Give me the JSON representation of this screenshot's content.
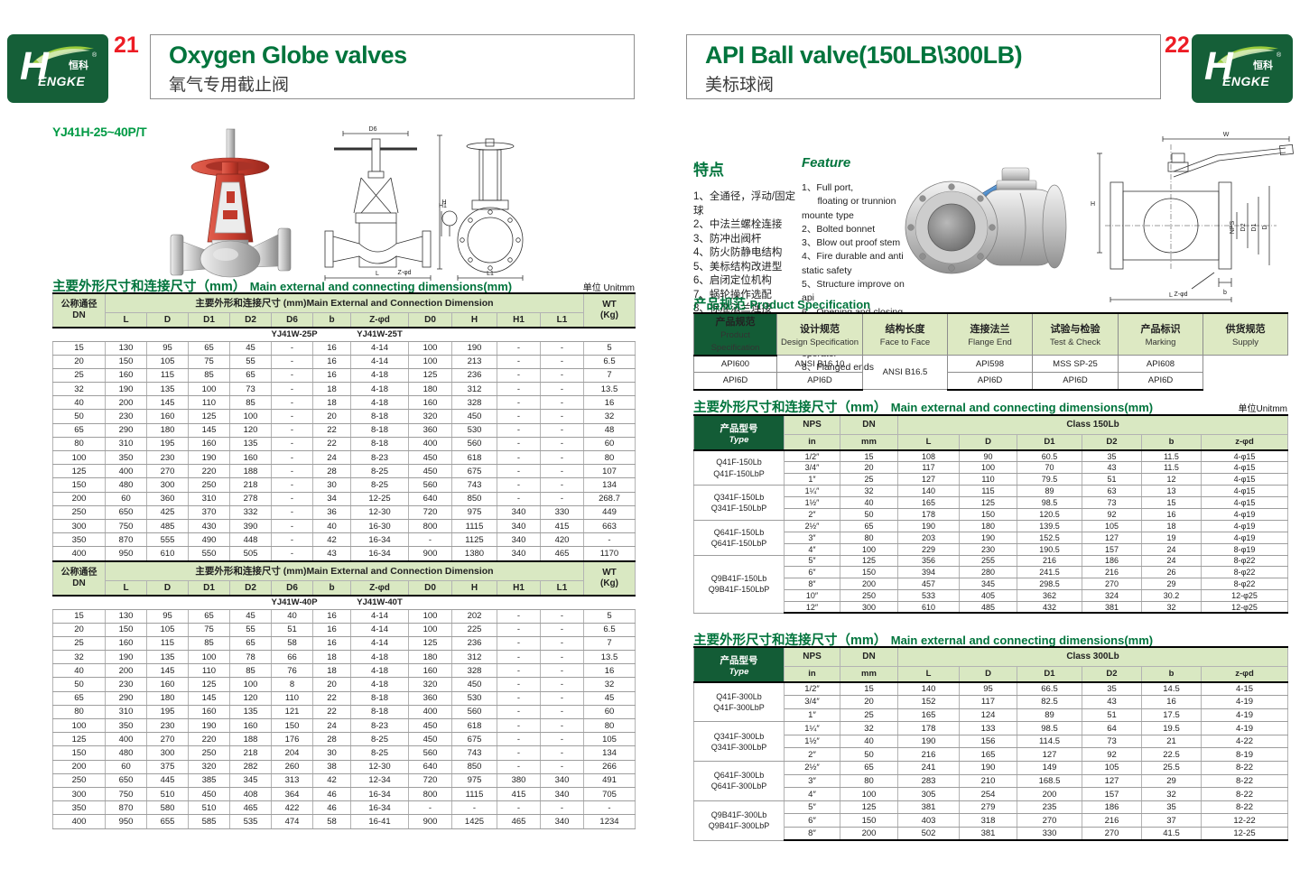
{
  "logo": {
    "h": "H",
    "engke": "ENGKE",
    "zh": "恒科",
    "reg": "®"
  },
  "left": {
    "page_number": "21",
    "title": "Oxygen Globe valves",
    "subtitle": "氧气专用截止阀",
    "model": "YJ41H-25~40P/T",
    "section_title_zh": "主要外形尺寸和连接尺寸（mm）",
    "section_title_en": "Main external and connecting dimensions(mm)",
    "unit": "单位 Unitmm",
    "table": {
      "dn_zh": "公称通径",
      "dn_en": "DN",
      "span_header": "主要外形和连接尺寸 (mm)Main External and Connection Dimension",
      "wt_zh": "WT",
      "wt_en": "(Kg)",
      "columns": [
        "L",
        "D",
        "D1",
        "D2",
        "D6",
        "b",
        "Z-φd",
        "D0",
        "H",
        "H1",
        "L1"
      ],
      "s1_model_p": "YJ41W-25P",
      "s1_model_t": "YJ41W-25T",
      "s2_model_p": "YJ41W-40P",
      "s2_model_t": "YJ41W-40T",
      "rows1": [
        [
          "15",
          "130",
          "95",
          "65",
          "45",
          "-",
          "16",
          "4-14",
          "100",
          "190",
          "-",
          "-",
          "5"
        ],
        [
          "20",
          "150",
          "105",
          "75",
          "55",
          "-",
          "16",
          "4-14",
          "100",
          "213",
          "-",
          "-",
          "6.5"
        ],
        [
          "25",
          "160",
          "115",
          "85",
          "65",
          "-",
          "16",
          "4-18",
          "125",
          "236",
          "-",
          "-",
          "7"
        ],
        [
          "32",
          "190",
          "135",
          "100",
          "73",
          "-",
          "18",
          "4-18",
          "180",
          "312",
          "-",
          "-",
          "13.5"
        ],
        [
          "40",
          "200",
          "145",
          "110",
          "85",
          "-",
          "18",
          "4-18",
          "160",
          "328",
          "-",
          "-",
          "16"
        ],
        [
          "50",
          "230",
          "160",
          "125",
          "100",
          "-",
          "20",
          "8-18",
          "320",
          "450",
          "-",
          "-",
          "32"
        ],
        [
          "65",
          "290",
          "180",
          "145",
          "120",
          "-",
          "22",
          "8-18",
          "360",
          "530",
          "-",
          "-",
          "48"
        ],
        [
          "80",
          "310",
          "195",
          "160",
          "135",
          "-",
          "22",
          "8-18",
          "400",
          "560",
          "-",
          "-",
          "60"
        ],
        [
          "100",
          "350",
          "230",
          "190",
          "160",
          "-",
          "24",
          "8-23",
          "450",
          "618",
          "-",
          "-",
          "80"
        ],
        [
          "125",
          "400",
          "270",
          "220",
          "188",
          "-",
          "28",
          "8-25",
          "450",
          "675",
          "-",
          "-",
          "107"
        ],
        [
          "150",
          "480",
          "300",
          "250",
          "218",
          "-",
          "30",
          "8-25",
          "560",
          "743",
          "-",
          "-",
          "134"
        ],
        [
          "200",
          "60",
          "360",
          "310",
          "278",
          "-",
          "34",
          "12-25",
          "640",
          "850",
          "-",
          "-",
          "268.7"
        ],
        [
          "250",
          "650",
          "425",
          "370",
          "332",
          "-",
          "36",
          "12-30",
          "720",
          "975",
          "340",
          "330",
          "449"
        ],
        [
          "300",
          "750",
          "485",
          "430",
          "390",
          "-",
          "40",
          "16-30",
          "800",
          "1115",
          "340",
          "415",
          "663"
        ],
        [
          "350",
          "870",
          "555",
          "490",
          "448",
          "-",
          "42",
          "16-34",
          "-",
          "1125",
          "340",
          "420",
          "-"
        ],
        [
          "400",
          "950",
          "610",
          "550",
          "505",
          "-",
          "43",
          "16-34",
          "900",
          "1380",
          "340",
          "465",
          "1170"
        ]
      ],
      "rows2": [
        [
          "15",
          "130",
          "95",
          "65",
          "45",
          "40",
          "16",
          "4-14",
          "100",
          "202",
          "-",
          "-",
          "5"
        ],
        [
          "20",
          "150",
          "105",
          "75",
          "55",
          "51",
          "16",
          "4-14",
          "100",
          "225",
          "-",
          "-",
          "6.5"
        ],
        [
          "25",
          "160",
          "115",
          "85",
          "65",
          "58",
          "16",
          "4-14",
          "125",
          "236",
          "-",
          "-",
          "7"
        ],
        [
          "32",
          "190",
          "135",
          "100",
          "78",
          "66",
          "18",
          "4-18",
          "180",
          "312",
          "-",
          "-",
          "13.5"
        ],
        [
          "40",
          "200",
          "145",
          "110",
          "85",
          "76",
          "18",
          "4-18",
          "160",
          "328",
          "-",
          "-",
          "16"
        ],
        [
          "50",
          "230",
          "160",
          "125",
          "100",
          "8",
          "20",
          "4-18",
          "320",
          "450",
          "-",
          "-",
          "32"
        ],
        [
          "65",
          "290",
          "180",
          "145",
          "120",
          "110",
          "22",
          "8-18",
          "360",
          "530",
          "-",
          "-",
          "45"
        ],
        [
          "80",
          "310",
          "195",
          "160",
          "135",
          "121",
          "22",
          "8-18",
          "400",
          "560",
          "-",
          "-",
          "60"
        ],
        [
          "100",
          "350",
          "230",
          "190",
          "160",
          "150",
          "24",
          "8-23",
          "450",
          "618",
          "-",
          "-",
          "80"
        ],
        [
          "125",
          "400",
          "270",
          "220",
          "188",
          "176",
          "28",
          "8-25",
          "450",
          "675",
          "-",
          "-",
          "105"
        ],
        [
          "150",
          "480",
          "300",
          "250",
          "218",
          "204",
          "30",
          "8-25",
          "560",
          "743",
          "-",
          "-",
          "134"
        ],
        [
          "200",
          "60",
          "375",
          "320",
          "282",
          "260",
          "38",
          "12-30",
          "640",
          "850",
          "-",
          "-",
          "266"
        ],
        [
          "250",
          "650",
          "445",
          "385",
          "345",
          "313",
          "42",
          "12-34",
          "720",
          "975",
          "380",
          "340",
          "491"
        ],
        [
          "300",
          "750",
          "510",
          "450",
          "408",
          "364",
          "46",
          "16-34",
          "800",
          "1115",
          "415",
          "340",
          "705"
        ],
        [
          "350",
          "870",
          "580",
          "510",
          "465",
          "422",
          "46",
          "16-34",
          "-",
          "-",
          "-",
          "-",
          "-"
        ],
        [
          "400",
          "950",
          "655",
          "585",
          "535",
          "474",
          "58",
          "16-41",
          "900",
          "1425",
          "465",
          "340",
          "1234"
        ]
      ]
    },
    "drawing_front": {
      "top": "D6",
      "right": "H",
      "flange": "Z-φd",
      "bottom": "L"
    },
    "drawing_side": {
      "left": "H1",
      "bottom": "L1"
    }
  },
  "right": {
    "page_number": "22",
    "title": "API Ball valve(150LB\\300LB)",
    "subtitle": "美标球阀",
    "features_zh": {
      "title": "特点",
      "items": [
        "1、全通径，浮动/固定球",
        "2、中法兰螺栓连接",
        "3、防冲出阀杆",
        "4、防火防静电结构",
        "5、美标结构改进型",
        "6、启闭定位机构",
        "7、蜗轮操作选配",
        "8、标准法兰连接"
      ]
    },
    "features_en": {
      "title": "Feature",
      "items": [
        "1、Full port,",
        "      floating or trunnion mounte type",
        "2、Bolted bonnet",
        "3、Blow out proof stem",
        "4、Fire durable and anti static safety",
        "5、Structure improve on api",
        "6、Opening and closing position",
        "7、Available with wormgear operator",
        "8、Flanged ends"
      ]
    },
    "spec": {
      "title_zh": "产品规范",
      "title_en": "Product Specification",
      "head_zh": "产品规范",
      "head_en1": "Product",
      "head_en2": "Specification",
      "columns": [
        {
          "zh": "设计规范",
          "en": "Design Specification"
        },
        {
          "zh": "结构长度",
          "en": "Face to Face"
        },
        {
          "zh": "连接法兰",
          "en": "Flange End"
        },
        {
          "zh": "试验与检验",
          "en": "Test & Check"
        },
        {
          "zh": "产品标识",
          "en": "Marking"
        },
        {
          "zh": "供货规范",
          "en": "Supply"
        }
      ],
      "row1": [
        "API600",
        "ANSI B16.10",
        "ANSI B16.5",
        "API598",
        "MSS SP-25",
        "API608"
      ],
      "row2": [
        "API6D",
        "API6D",
        "API6D",
        "API6D",
        "API6D"
      ]
    },
    "t150": {
      "title_zh": "主要外形尺寸和连接尺寸（mm）",
      "title_en": "Main external and connecting dimensions(mm)",
      "unit": "单位Unitmm",
      "type_zh": "产品型号",
      "type_en": "Type",
      "nps": "NPS",
      "dn": "DN",
      "in_label": "in",
      "mm_label": "mm",
      "class_label": "Class 150Lb",
      "columns": [
        "L",
        "D",
        "D1",
        "D2",
        "b",
        "z-φd"
      ],
      "groups": [
        {
          "type": [
            "Q41F-150Lb",
            "Q41F-150LbP"
          ],
          "rows": [
            [
              "1/2″",
              "15",
              "108",
              "90",
              "60.5",
              "35",
              "11.5",
              "4-φ15"
            ],
            [
              "3/4″",
              "20",
              "117",
              "100",
              "70",
              "43",
              "11.5",
              "4-φ15"
            ],
            [
              "1″",
              "25",
              "127",
              "110",
              "79.5",
              "51",
              "12",
              "4-φ15"
            ]
          ]
        },
        {
          "type": [
            "Q341F-150Lb",
            "Q341F-150LbP"
          ],
          "rows": [
            [
              "1¼″",
              "32",
              "140",
              "115",
              "89",
              "63",
              "13",
              "4-φ15"
            ],
            [
              "1½″",
              "40",
              "165",
              "125",
              "98.5",
              "73",
              "15",
              "4-φ15"
            ],
            [
              "2″",
              "50",
              "178",
              "150",
              "120.5",
              "92",
              "16",
              "4-φ19"
            ]
          ]
        },
        {
          "type": [
            "Q641F-150Lb",
            "Q641F-150LbP"
          ],
          "rows": [
            [
              "2½″",
              "65",
              "190",
              "180",
              "139.5",
              "105",
              "18",
              "4-φ19"
            ],
            [
              "3″",
              "80",
              "203",
              "190",
              "152.5",
              "127",
              "19",
              "4-φ19"
            ],
            [
              "4″",
              "100",
              "229",
              "230",
              "190.5",
              "157",
              "24",
              "8-φ19"
            ]
          ]
        },
        {
          "type": [
            "Q9B41F-150Lb",
            "Q9B41F-150LbP"
          ],
          "rows": [
            [
              "5″",
              "125",
              "356",
              "255",
              "216",
              "186",
              "24",
              "8-φ22"
            ],
            [
              "6″",
              "150",
              "394",
              "280",
              "241.5",
              "216",
              "26",
              "8-φ22"
            ],
            [
              "8″",
              "200",
              "457",
              "345",
              "298.5",
              "270",
              "29",
              "8-φ22"
            ],
            [
              "10″",
              "250",
              "533",
              "405",
              "362",
              "324",
              "30.2",
              "12-φ25"
            ],
            [
              "12″",
              "300",
              "610",
              "485",
              "432",
              "381",
              "32",
              "12-φ25"
            ]
          ]
        }
      ]
    },
    "t300": {
      "title_zh": "主要外形尺寸和连接尺寸（mm）",
      "title_en": "Main external and connecting dimensions(mm)",
      "type_zh": "产品型号",
      "type_en": "Type",
      "nps": "NPS",
      "dn": "DN",
      "in_label": "in",
      "mm_label": "mm",
      "class_label": "Class 300Lb",
      "columns": [
        "L",
        "D",
        "D1",
        "D2",
        "b",
        "z-φd"
      ],
      "groups": [
        {
          "type": [
            "Q41F-300Lb",
            "Q41F-300LbP"
          ],
          "rows": [
            [
              "1/2″",
              "15",
              "140",
              "95",
              "66.5",
              "35",
              "14.5",
              "4-15"
            ],
            [
              "3/4″",
              "20",
              "152",
              "117",
              "82.5",
              "43",
              "16",
              "4-19"
            ],
            [
              "1″",
              "25",
              "165",
              "124",
              "89",
              "51",
              "17.5",
              "4-19"
            ]
          ]
        },
        {
          "type": [
            "Q341F-300Lb",
            "Q341F-300LbP"
          ],
          "rows": [
            [
              "1¼″",
              "32",
              "178",
              "133",
              "98.5",
              "64",
              "19.5",
              "4-19"
            ],
            [
              "1½″",
              "40",
              "190",
              "156",
              "114.5",
              "73",
              "21",
              "4-22"
            ],
            [
              "2″",
              "50",
              "216",
              "165",
              "127",
              "92",
              "22.5",
              "8-19"
            ]
          ]
        },
        {
          "type": [
            "Q641F-300Lb",
            "Q641F-300LbP"
          ],
          "rows": [
            [
              "2½″",
              "65",
              "241",
              "190",
              "149",
              "105",
              "25.5",
              "8-22"
            ],
            [
              "3″",
              "80",
              "283",
              "210",
              "168.5",
              "127",
              "29",
              "8-22"
            ],
            [
              "4″",
              "100",
              "305",
              "254",
              "200",
              "157",
              "32",
              "8-22"
            ]
          ]
        },
        {
          "type": [
            "Q9B41F-300Lb",
            "Q9B41F-300LbP"
          ],
          "rows": [
            [
              "5″",
              "125",
              "381",
              "279",
              "235",
              "186",
              "35",
              "8-22"
            ],
            [
              "6″",
              "150",
              "403",
              "318",
              "270",
              "216",
              "37",
              "12-22"
            ],
            [
              "8″",
              "200",
              "502",
              "381",
              "330",
              "270",
              "41.5",
              "12-25"
            ]
          ]
        }
      ]
    },
    "ball_drawing": {
      "top": "W",
      "left": "H",
      "r1": "NPS",
      "r2": "D2",
      "r3": "D1",
      "r4": "D",
      "f": "Z-φd",
      "b": "b",
      "bottom": "L"
    }
  },
  "colors": {
    "accent_green": "#00743c",
    "dark_green": "#135c36",
    "header_green": "#d9e8c2",
    "page_red": "#ed1c24",
    "handle_blue": "#2f6db5",
    "valve_red": "#c0392b"
  }
}
